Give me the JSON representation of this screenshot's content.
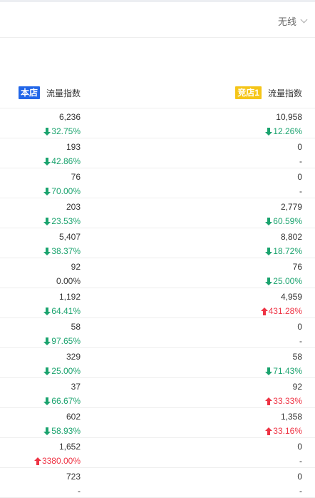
{
  "toolbar": {
    "dropdown_label": "无线"
  },
  "header": {
    "own_badge": "本店",
    "own_metric": "流量指数",
    "comp_badge": "竞店1",
    "comp_metric": "流量指数"
  },
  "colors": {
    "down": "#1aa36e",
    "up": "#ee3344",
    "own_badge": "#2266e8",
    "comp_badge": "#f5c518"
  },
  "rows": [
    {
      "own": {
        "value": "6,236",
        "change": "32.75%",
        "dir": "down"
      },
      "comp": {
        "value": "10,958",
        "change": "12.26%",
        "dir": "down"
      }
    },
    {
      "own": {
        "value": "193",
        "change": "42.86%",
        "dir": "down"
      },
      "comp": {
        "value": "0",
        "change": "-",
        "dir": "none"
      }
    },
    {
      "own": {
        "value": "76",
        "change": "70.00%",
        "dir": "down"
      },
      "comp": {
        "value": "0",
        "change": "-",
        "dir": "none"
      }
    },
    {
      "own": {
        "value": "203",
        "change": "23.53%",
        "dir": "down"
      },
      "comp": {
        "value": "2,779",
        "change": "60.59%",
        "dir": "down"
      }
    },
    {
      "own": {
        "value": "5,407",
        "change": "38.37%",
        "dir": "down"
      },
      "comp": {
        "value": "8,802",
        "change": "18.72%",
        "dir": "down"
      }
    },
    {
      "own": {
        "value": "92",
        "change": "0.00%",
        "dir": "none"
      },
      "comp": {
        "value": "76",
        "change": "25.00%",
        "dir": "down"
      }
    },
    {
      "own": {
        "value": "1,192",
        "change": "64.41%",
        "dir": "down"
      },
      "comp": {
        "value": "4,959",
        "change": "431.28%",
        "dir": "up"
      }
    },
    {
      "own": {
        "value": "58",
        "change": "97.65%",
        "dir": "down"
      },
      "comp": {
        "value": "0",
        "change": "-",
        "dir": "none"
      }
    },
    {
      "own": {
        "value": "329",
        "change": "25.00%",
        "dir": "down"
      },
      "comp": {
        "value": "58",
        "change": "71.43%",
        "dir": "down"
      }
    },
    {
      "own": {
        "value": "37",
        "change": "66.67%",
        "dir": "down"
      },
      "comp": {
        "value": "92",
        "change": "33.33%",
        "dir": "up"
      }
    },
    {
      "own": {
        "value": "602",
        "change": "58.93%",
        "dir": "down"
      },
      "comp": {
        "value": "1,358",
        "change": "33.16%",
        "dir": "up"
      }
    },
    {
      "own": {
        "value": "1,652",
        "change": "3380.00%",
        "dir": "up"
      },
      "comp": {
        "value": "0",
        "change": "-",
        "dir": "none"
      }
    },
    {
      "own": {
        "value": "723",
        "change": "-",
        "dir": "none"
      },
      "comp": {
        "value": "0",
        "change": "-",
        "dir": "none"
      }
    }
  ]
}
